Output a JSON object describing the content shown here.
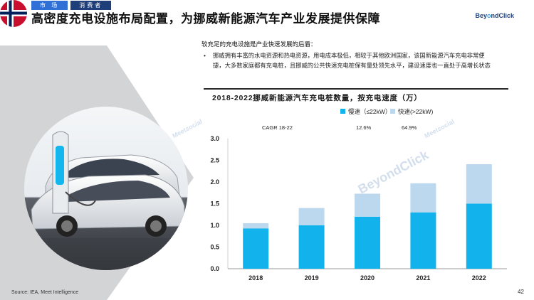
{
  "header": {
    "tabs": [
      {
        "label": "市  场"
      },
      {
        "label": "消费者"
      }
    ],
    "title": "高密度充电设施布局配置，为挪威新能源汽车产业发展提供保障",
    "brand": {
      "prefix": "Bey",
      "o": "o",
      "suffix": "ndClick"
    }
  },
  "content": {
    "subhead": "较充足的充电设施是产业快速发展的后盾：",
    "bullet_mark": "•",
    "bullet_text": "挪威拥有丰富的水电资源和热电资源，用电成本极低，相较于其他欧洲国家，该国新能源汽车充电非常便捷，大多数家庭都有充电桩，且挪威的公共快速充电桩保有量处领先水平，建设速度也一直处于高增长状态"
  },
  "watermarks": {
    "beyondclick": "BeyondClick",
    "meetsocial": "Meetsocial"
  },
  "footer": {
    "source": "Source: IEA, Meet Intelligence",
    "page": "42"
  },
  "colors": {
    "slow": "#12b3ec",
    "fast": "#bcd8ef",
    "tab_market": "#2f6fd6",
    "tab_consumer": "#1f3f7a",
    "flag_red": "#c8102e",
    "flag_blue": "#00205b"
  },
  "chart_data": {
    "type": "bar",
    "stacked": true,
    "title": "2018-2022挪威新能源汽车充电桩数量，按充电速度（万）",
    "categories": [
      "2018",
      "2019",
      "2020",
      "2021",
      "2022"
    ],
    "series": [
      {
        "name": "慢速（≤22kW）",
        "values": [
          0.93,
          1.0,
          1.2,
          1.3,
          1.5
        ]
      },
      {
        "name": "快速(>22kW)",
        "values": [
          0.12,
          0.4,
          0.53,
          0.67,
          0.91
        ]
      }
    ],
    "cagr": {
      "label": "CAGR 18-22",
      "values": [
        "12.6%",
        "64.9%"
      ]
    },
    "yticks": [
      "0.0",
      "0.5",
      "1.0",
      "1.5",
      "2.0",
      "2.5",
      "3.0"
    ],
    "ylim": [
      0,
      3.0
    ],
    "grid": false,
    "legend": "top"
  }
}
